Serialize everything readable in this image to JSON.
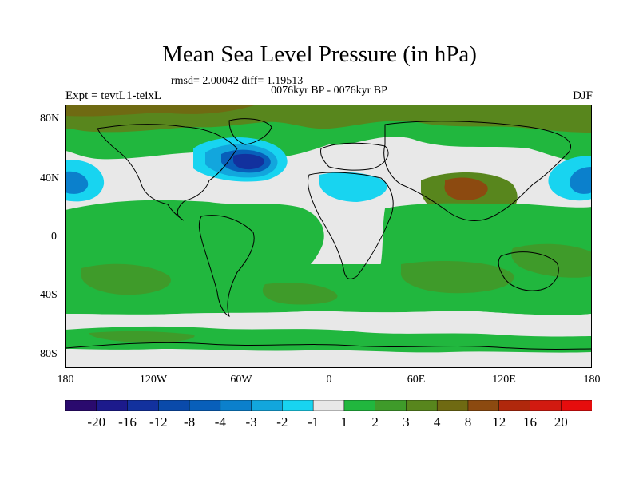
{
  "header": {
    "title": "Mean Sea Level Pressure (in hPa)",
    "stats": "rmsd= 2.00042 diff= 1.19513",
    "period": "0076kyr BP - 0076kyr BP",
    "experiment": "Expt = tevtL1-teixL",
    "season": "DJF"
  },
  "axes": {
    "lat_labels": [
      "80N",
      "40N",
      "0",
      "40S",
      "80S"
    ],
    "lon_labels": [
      "180",
      "120W",
      "60W",
      "0",
      "60E",
      "120E",
      "180"
    ]
  },
  "colorbar": {
    "labels": [
      "-20",
      "-16",
      "-12",
      "-8",
      "-4",
      "-3",
      "-2",
      "-1",
      "1",
      "2",
      "3",
      "4",
      "8",
      "12",
      "16",
      "20"
    ],
    "colors": [
      "#2a0a6e",
      "#1c1a8c",
      "#12319e",
      "#0a4aaa",
      "#085fba",
      "#0b80cc",
      "#12a6dd",
      "#18d4f0",
      "#e8e8e8",
      "#21b73e",
      "#3f9b2a",
      "#58861d",
      "#6f6a12",
      "#8c4a10",
      "#b0280c",
      "#d21a10",
      "#e60d0d"
    ]
  },
  "map_colors": {
    "neutral": "#e8e8e8",
    "pos1": "#21b73e",
    "pos2": "#3f9b2a",
    "pos3": "#58861d",
    "pos4": "#6f6a12",
    "pos5": "#8c4a10",
    "neg1": "#18d4f0",
    "neg2": "#12a6dd",
    "neg3": "#0b80cc",
    "neg4": "#085fba",
    "neg5": "#0a4aaa",
    "neg6": "#12319e",
    "coast": "#000000"
  }
}
